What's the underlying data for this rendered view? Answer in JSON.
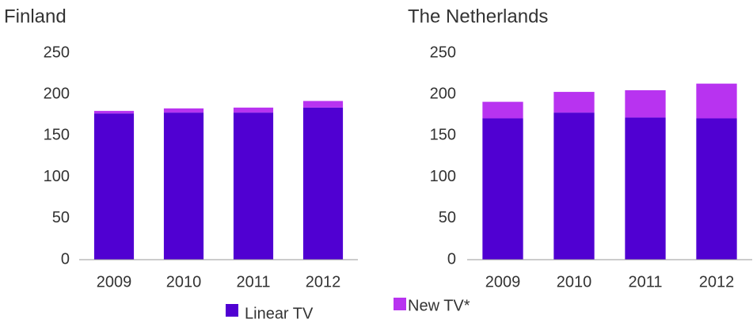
{
  "chart_data": [
    {
      "type": "stacked_bar",
      "title": "Finland",
      "categories": [
        "2009",
        "2010",
        "2011",
        "2012"
      ],
      "series": [
        {
          "name": "Linear TV",
          "color": "#5000d2",
          "values": [
            177,
            178,
            178,
            184
          ]
        },
        {
          "name": "New TV*",
          "color": "#b833f0",
          "values": [
            3,
            5,
            6,
            8
          ]
        }
      ],
      "ylim": [
        0,
        250
      ],
      "yticks": [
        0,
        50,
        100,
        150,
        200,
        250
      ]
    },
    {
      "type": "stacked_bar",
      "title": "The Netherlands",
      "categories": [
        "2009",
        "2010",
        "2011",
        "2012"
      ],
      "series": [
        {
          "color": "#5000d2",
          "values": [
            171,
            178,
            172,
            171
          ]
        },
        {
          "color": "#b833f0",
          "values": [
            20,
            25,
            33,
            42
          ]
        }
      ],
      "ylim": [
        0,
        250
      ],
      "yticks": [
        0,
        50,
        100,
        150,
        200,
        250
      ]
    }
  ]
}
